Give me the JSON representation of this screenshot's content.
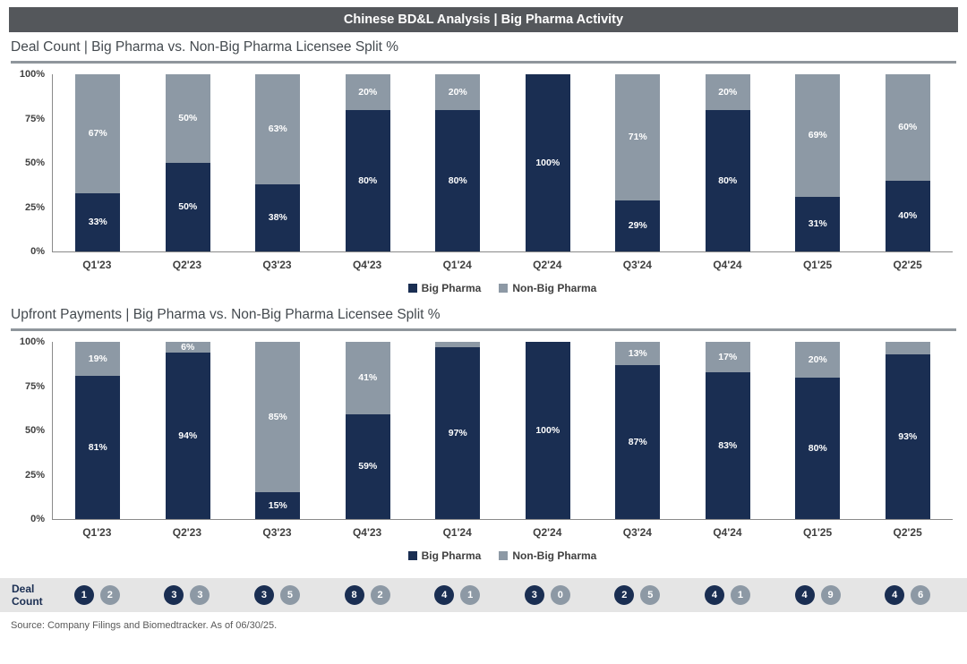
{
  "header": {
    "title": "Chinese BD&L Analysis | Big Pharma Activity"
  },
  "colors": {
    "big_pharma": "#1a2e52",
    "non_big_pharma": "#8d99a5",
    "header_bar": "#54575b",
    "strip_bg": "#e5e5e5"
  },
  "chart_data": [
    {
      "type": "bar",
      "stacked": true,
      "value_format": "percent",
      "title": "Deal Count | Big Pharma vs. Non-Big Pharma Licensee Split %",
      "categories": [
        "Q1'23",
        "Q2'23",
        "Q3'23",
        "Q4'23",
        "Q1'24",
        "Q2'24",
        "Q3'24",
        "Q4'24",
        "Q1'25",
        "Q2'25"
      ],
      "series": [
        {
          "name": "Big Pharma",
          "values": [
            33,
            50,
            38,
            80,
            80,
            100,
            29,
            80,
            31,
            40
          ],
          "labels": [
            "33%",
            "50%",
            "38%",
            "80%",
            "80%",
            "100%",
            "29%",
            "80%",
            "31%",
            "40%"
          ]
        },
        {
          "name": "Non-Big Pharma",
          "values": [
            67,
            50,
            63,
            20,
            20,
            0,
            71,
            20,
            69,
            60
          ],
          "labels": [
            "67%",
            "50%",
            "63%",
            "20%",
            "20%",
            "",
            "71%",
            "20%",
            "69%",
            "60%"
          ]
        }
      ],
      "ylim": [
        0,
        100
      ],
      "ytick_labels": [
        "100%",
        "75%",
        "50%",
        "25%",
        "0%"
      ],
      "legend_position": "bottom"
    },
    {
      "type": "bar",
      "stacked": true,
      "value_format": "percent",
      "title": "Upfront Payments | Big Pharma vs. Non-Big Pharma Licensee Split %",
      "categories": [
        "Q1'23",
        "Q2'23",
        "Q3'23",
        "Q4'23",
        "Q1'24",
        "Q2'24",
        "Q3'24",
        "Q4'24",
        "Q1'25",
        "Q2'25"
      ],
      "series": [
        {
          "name": "Big Pharma",
          "values": [
            81,
            94,
            15,
            59,
            97,
            100,
            87,
            83,
            80,
            93
          ],
          "labels": [
            "81%",
            "94%",
            "15%",
            "59%",
            "97%",
            "100%",
            "87%",
            "83%",
            "80%",
            "93%"
          ]
        },
        {
          "name": "Non-Big Pharma",
          "values": [
            19,
            6,
            85,
            41,
            3,
            0,
            13,
            17,
            20,
            7
          ],
          "labels": [
            "19%",
            "6%",
            "85%",
            "41%",
            "",
            "",
            "13%",
            "17%",
            "20%",
            ""
          ]
        }
      ],
      "ylim": [
        0,
        100
      ],
      "ytick_labels": [
        "100%",
        "75%",
        "50%",
        "25%",
        "0%"
      ],
      "legend_position": "bottom"
    }
  ],
  "deal_count_row": {
    "label_line1": "Deal",
    "label_line2": "Count",
    "pairs": [
      [
        1,
        2
      ],
      [
        3,
        3
      ],
      [
        3,
        5
      ],
      [
        8,
        2
      ],
      [
        4,
        1
      ],
      [
        3,
        0
      ],
      [
        2,
        5
      ],
      [
        4,
        1
      ],
      [
        4,
        9
      ],
      [
        4,
        6
      ]
    ]
  },
  "source": "Source: Company Filings and Biomedtracker. As of 06/30/25."
}
